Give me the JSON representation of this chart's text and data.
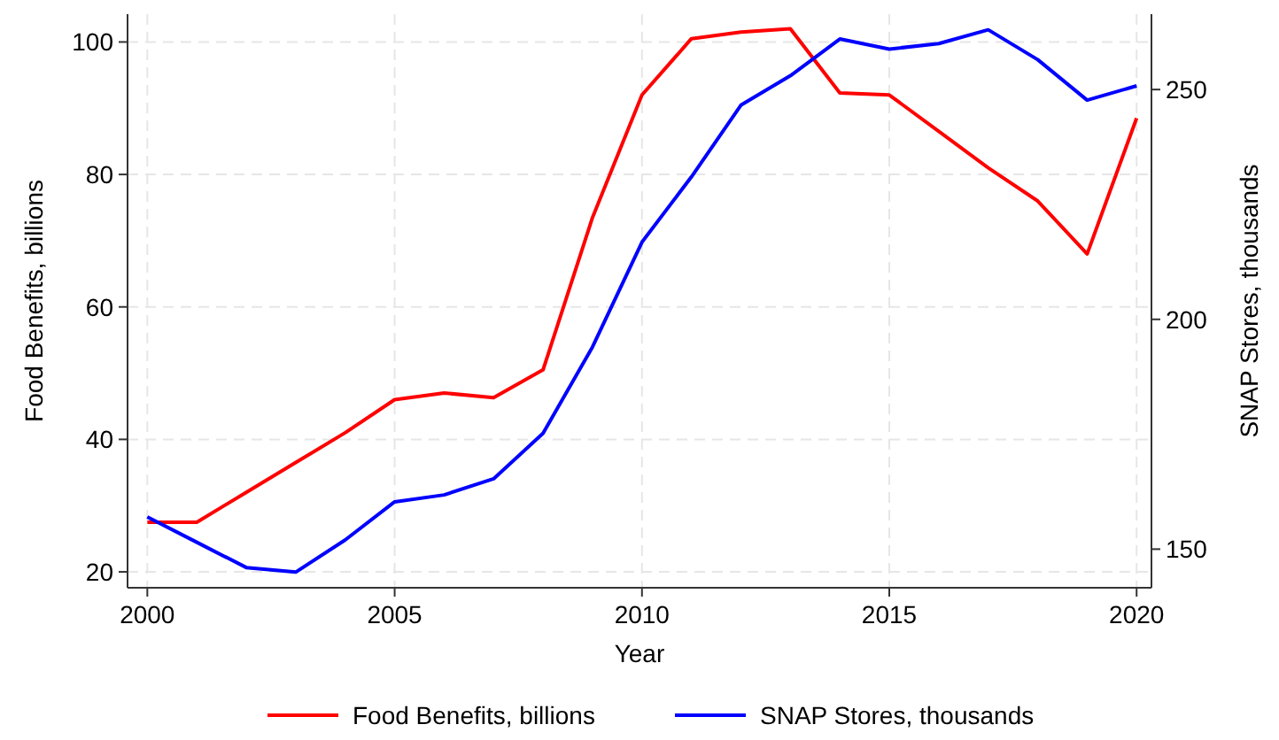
{
  "chart_data": {
    "type": "line",
    "xlabel": "Year",
    "ylabel": "Food Benefits, billions",
    "y2label": "SNAP Stores, thousands",
    "x": [
      2000,
      2001,
      2002,
      2003,
      2004,
      2005,
      2006,
      2007,
      2008,
      2009,
      2010,
      2011,
      2012,
      2013,
      2014,
      2015,
      2016,
      2017,
      2018,
      2019,
      2020
    ],
    "series": [
      {
        "name": "Food Benefits, billions",
        "color": "#ff0000",
        "values": [
          27.5,
          27.5,
          32,
          36.5,
          41,
          46,
          47,
          46.3,
          50.5,
          73.5,
          92,
          100.5,
          101.5,
          102,
          92.3,
          92,
          86.5,
          81,
          76,
          68,
          88.5
        ]
      },
      {
        "name": "SNAP Stores, thousands",
        "color": "#0000ff",
        "axis": "y2",
        "values": [
          157,
          151.5,
          146,
          145,
          152,
          160.3,
          161.8,
          165.3,
          175.2,
          194,
          216.8,
          231,
          246.6,
          253,
          261,
          258.8,
          260,
          263,
          256.5,
          247.7,
          250.8
        ]
      }
    ],
    "xlim": [
      1999.6,
      2020.3
    ],
    "xticks": [
      2000,
      2005,
      2010,
      2015,
      2020
    ],
    "ylim": [
      17.6,
      104.2
    ],
    "yticks": [
      20,
      40,
      60,
      80,
      100
    ],
    "y2lim": [
      141.6,
      266.4
    ],
    "y2ticks": [
      150,
      200,
      250
    ],
    "grid": true,
    "legend": "bottom",
    "line_style": "solid",
    "marker": "none"
  }
}
